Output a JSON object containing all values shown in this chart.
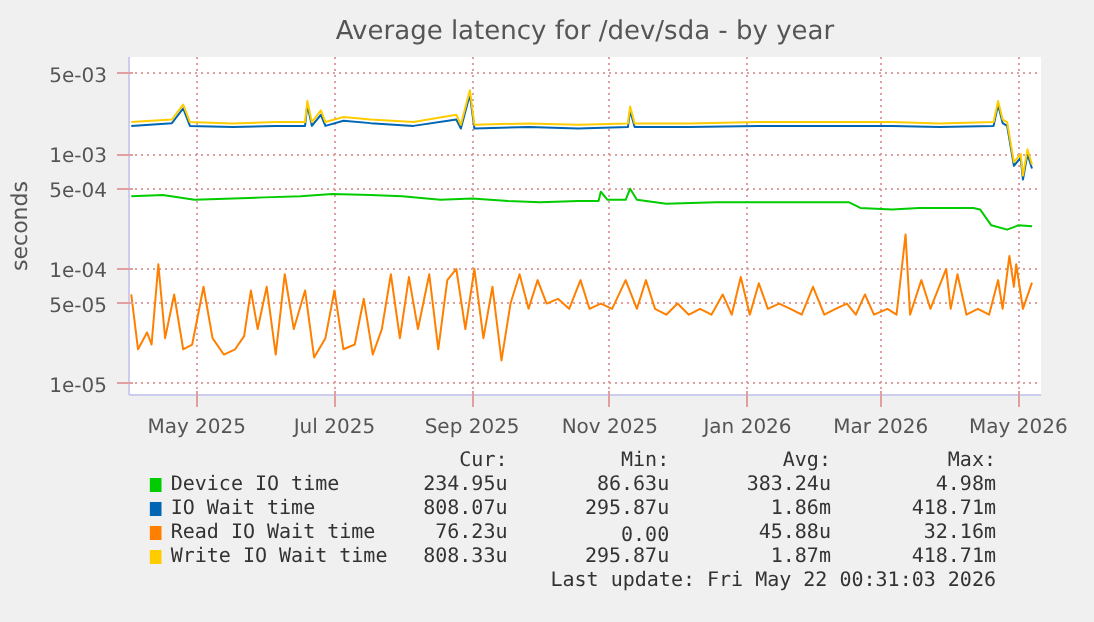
{
  "chart_data": {
    "type": "line",
    "title": "Average latency for /dev/sda - by year",
    "ylabel": "seconds",
    "log": "y",
    "grid": true,
    "legend": "bottom",
    "line_style": "solid",
    "marker": "none",
    "xlim": [
      "2025-04-16",
      "2026-05-25"
    ],
    "xticks": [
      {
        "value": "2025-05-16",
        "label": "May 2025"
      },
      {
        "value": "2025-07-16",
        "label": "Jul 2025"
      },
      {
        "value": "2025-09-15",
        "label": "Sep 2025"
      },
      {
        "value": "2025-11-15",
        "label": "Nov 2025"
      },
      {
        "value": "2026-01-15",
        "label": "Jan 2026"
      },
      {
        "value": "2026-03-15",
        "label": "Mar 2026"
      },
      {
        "value": "2026-05-15",
        "label": "May 2026"
      }
    ],
    "ylim": [
      8e-06,
      0.007
    ],
    "yticks": [
      {
        "value": 1e-05,
        "label": "1e-05"
      },
      {
        "value": 5e-05,
        "label": "5e-05"
      },
      {
        "value": 0.0001,
        "label": "1e-04"
      },
      {
        "value": 0.0005,
        "label": "5e-04"
      },
      {
        "value": 0.001,
        "label": "1e-03"
      },
      {
        "value": 0.005,
        "label": "5e-03"
      }
    ],
    "series": [
      {
        "name": "Device IO time",
        "color": "#00cc00",
        "x": [
          "2025-04-17",
          "2025-05-01",
          "2025-05-15",
          "2025-06-01",
          "2025-06-15",
          "2025-07-01",
          "2025-07-15",
          "2025-08-01",
          "2025-08-15",
          "2025-09-01",
          "2025-09-15",
          "2025-10-01",
          "2025-10-15",
          "2025-11-01",
          "2025-11-10",
          "2025-11-11",
          "2025-11-14",
          "2025-11-22",
          "2025-11-24",
          "2025-11-27",
          "2025-12-10",
          "2026-01-01",
          "2026-02-01",
          "2026-03-01",
          "2026-03-06",
          "2026-03-20",
          "2026-04-01",
          "2026-04-25",
          "2026-04-28",
          "2026-05-03",
          "2026-05-10",
          "2026-05-15",
          "2026-05-21"
        ],
        "values": [
          0.00043,
          0.00044,
          0.0004,
          0.00041,
          0.00042,
          0.00043,
          0.00045,
          0.00044,
          0.00043,
          0.0004,
          0.00041,
          0.00039,
          0.00038,
          0.00039,
          0.00039,
          0.00047,
          0.0004,
          0.0004,
          0.0005,
          0.0004,
          0.00037,
          0.00038,
          0.00038,
          0.00038,
          0.00034,
          0.00033,
          0.00034,
          0.00034,
          0.00033,
          0.00024,
          0.00022,
          0.00024,
          0.000235
        ]
      },
      {
        "name": "IO Wait time",
        "color": "#0066b3",
        "x": [
          "2025-04-17",
          "2025-05-05",
          "2025-05-10",
          "2025-05-13",
          "2025-06-01",
          "2025-06-20",
          "2025-07-03",
          "2025-07-04",
          "2025-07-06",
          "2025-07-10",
          "2025-07-12",
          "2025-07-20",
          "2025-08-01",
          "2025-08-20",
          "2025-09-08",
          "2025-09-10",
          "2025-09-14",
          "2025-09-16",
          "2025-10-10",
          "2025-11-01",
          "2025-11-23",
          "2025-11-24",
          "2025-11-26",
          "2025-12-20",
          "2026-01-20",
          "2026-02-20",
          "2026-03-20",
          "2026-04-10",
          "2026-05-04",
          "2026-05-06",
          "2026-05-08",
          "2026-05-10",
          "2026-05-13",
          "2026-05-16",
          "2026-05-17",
          "2026-05-19",
          "2026-05-21"
        ],
        "values": [
          0.00176,
          0.00186,
          0.0025,
          0.00176,
          0.00172,
          0.00176,
          0.00176,
          0.0027,
          0.00176,
          0.0022,
          0.00176,
          0.00195,
          0.00186,
          0.00176,
          0.002,
          0.00167,
          0.0033,
          0.00167,
          0.00172,
          0.00167,
          0.00172,
          0.0024,
          0.00172,
          0.00172,
          0.00176,
          0.00176,
          0.00176,
          0.00172,
          0.00176,
          0.0027,
          0.00186,
          0.00176,
          0.00079,
          0.00093,
          0.0006,
          0.001,
          0.00075
        ]
      },
      {
        "name": "Read IO Wait time",
        "color": "#ff8000",
        "x": [
          "2025-04-17",
          "2025-04-20",
          "2025-04-24",
          "2025-04-26",
          "2025-04-29",
          "2025-05-02",
          "2025-05-06",
          "2025-05-10",
          "2025-05-14",
          "2025-05-19",
          "2025-05-23",
          "2025-05-28",
          "2025-06-02",
          "2025-06-06",
          "2025-06-09",
          "2025-06-12",
          "2025-06-16",
          "2025-06-20",
          "2025-06-24",
          "2025-06-28",
          "2025-07-03",
          "2025-07-07",
          "2025-07-12",
          "2025-07-16",
          "2025-07-20",
          "2025-07-25",
          "2025-07-29",
          "2025-08-02",
          "2025-08-06",
          "2025-08-10",
          "2025-08-14",
          "2025-08-18",
          "2025-08-22",
          "2025-08-27",
          "2025-08-31",
          "2025-09-04",
          "2025-09-08",
          "2025-09-12",
          "2025-09-16",
          "2025-09-20",
          "2025-09-24",
          "2025-09-28",
          "2025-10-02",
          "2025-10-06",
          "2025-10-10",
          "2025-10-14",
          "2025-10-18",
          "2025-10-23",
          "2025-10-28",
          "2025-11-02",
          "2025-11-06",
          "2025-11-11",
          "2025-11-16",
          "2025-11-22",
          "2025-11-27",
          "2025-12-01",
          "2025-12-05",
          "2025-12-10",
          "2025-12-15",
          "2025-12-20",
          "2025-12-25",
          "2025-12-30",
          "2026-01-04",
          "2026-01-08",
          "2026-01-12",
          "2026-01-16",
          "2026-01-20",
          "2026-01-24",
          "2026-01-29",
          "2026-02-03",
          "2026-02-08",
          "2026-02-13",
          "2026-02-18",
          "2026-02-23",
          "2026-02-28",
          "2026-03-04",
          "2026-03-08",
          "2026-03-12",
          "2026-03-18",
          "2026-03-22",
          "2026-03-26",
          "2026-03-28",
          "2026-04-02",
          "2026-04-06",
          "2026-04-13",
          "2026-04-15",
          "2026-04-18",
          "2026-04-22",
          "2026-04-27",
          "2026-05-02",
          "2026-05-06",
          "2026-05-08",
          "2026-05-11",
          "2026-05-13",
          "2026-05-14",
          "2026-05-17",
          "2026-05-21"
        ],
        "values": [
          6e-05,
          2e-05,
          2.8e-05,
          2.2e-05,
          0.00011,
          2.5e-05,
          6e-05,
          2e-05,
          2.2e-05,
          7e-05,
          2.5e-05,
          1.8e-05,
          2e-05,
          2.6e-05,
          6.5e-05,
          3e-05,
          7e-05,
          1.8e-05,
          9e-05,
          3e-05,
          6.5e-05,
          1.7e-05,
          2.5e-05,
          6.5e-05,
          2e-05,
          2.2e-05,
          5.5e-05,
          1.8e-05,
          3e-05,
          9e-05,
          2.5e-05,
          8.5e-05,
          3e-05,
          9e-05,
          2e-05,
          8e-05,
          0.0001,
          3e-05,
          0.0001,
          2.5e-05,
          7e-05,
          1.6e-05,
          5e-05,
          9e-05,
          4.5e-05,
          8e-05,
          5e-05,
          5.5e-05,
          4.5e-05,
          8e-05,
          4.5e-05,
          5e-05,
          4.5e-05,
          8e-05,
          4.5e-05,
          8e-05,
          4.5e-05,
          4e-05,
          5e-05,
          4e-05,
          4.5e-05,
          4e-05,
          6e-05,
          4e-05,
          8.5e-05,
          4e-05,
          7.5e-05,
          4.5e-05,
          5e-05,
          4.5e-05,
          4e-05,
          7e-05,
          4e-05,
          4.5e-05,
          5e-05,
          4e-05,
          6e-05,
          4e-05,
          4.5e-05,
          4e-05,
          0.0002,
          4e-05,
          8e-05,
          4.5e-05,
          0.0001,
          4.5e-05,
          9e-05,
          4e-05,
          4.5e-05,
          4e-05,
          8e-05,
          4.5e-05,
          0.00013,
          7e-05,
          0.00011,
          4.5e-05,
          7.6e-05
        ]
      },
      {
        "name": "Write IO Wait time",
        "color": "#ffcc00",
        "x": [
          "2025-04-17",
          "2025-05-05",
          "2025-05-10",
          "2025-05-13",
          "2025-06-01",
          "2025-06-20",
          "2025-07-03",
          "2025-07-04",
          "2025-07-06",
          "2025-07-10",
          "2025-07-12",
          "2025-07-20",
          "2025-08-01",
          "2025-08-20",
          "2025-09-08",
          "2025-09-10",
          "2025-09-14",
          "2025-09-16",
          "2025-10-10",
          "2025-11-01",
          "2025-11-23",
          "2025-11-24",
          "2025-11-26",
          "2025-12-20",
          "2026-01-20",
          "2026-02-20",
          "2026-03-20",
          "2026-04-10",
          "2026-05-04",
          "2026-05-06",
          "2026-05-08",
          "2026-05-10",
          "2026-05-13",
          "2026-05-16",
          "2026-05-17",
          "2026-05-19",
          "2026-05-21"
        ],
        "values": [
          0.0019,
          0.002,
          0.0027,
          0.0019,
          0.00185,
          0.0019,
          0.0019,
          0.0029,
          0.0019,
          0.0024,
          0.0019,
          0.0021,
          0.002,
          0.0019,
          0.0022,
          0.0018,
          0.0036,
          0.0018,
          0.00185,
          0.0018,
          0.00185,
          0.0026,
          0.00185,
          0.00185,
          0.0019,
          0.0019,
          0.0019,
          0.00185,
          0.0019,
          0.0029,
          0.002,
          0.0019,
          0.00085,
          0.001,
          0.00065,
          0.0011,
          0.00081
        ]
      }
    ],
    "annotations": [
      "Cur:",
      "Min:",
      "Avg:",
      "Max:",
      "234.95u",
      "86.63u",
      "383.24u",
      "4.98m",
      "808.07u",
      "295.87u",
      "1.86m",
      "418.71m",
      "76.23u",
      "0.00",
      "45.88u",
      "32.16m",
      "808.33u",
      "295.87u",
      "1.87m",
      "418.71m",
      "Last update: Fri May 22 00:31:03 2026"
    ]
  }
}
